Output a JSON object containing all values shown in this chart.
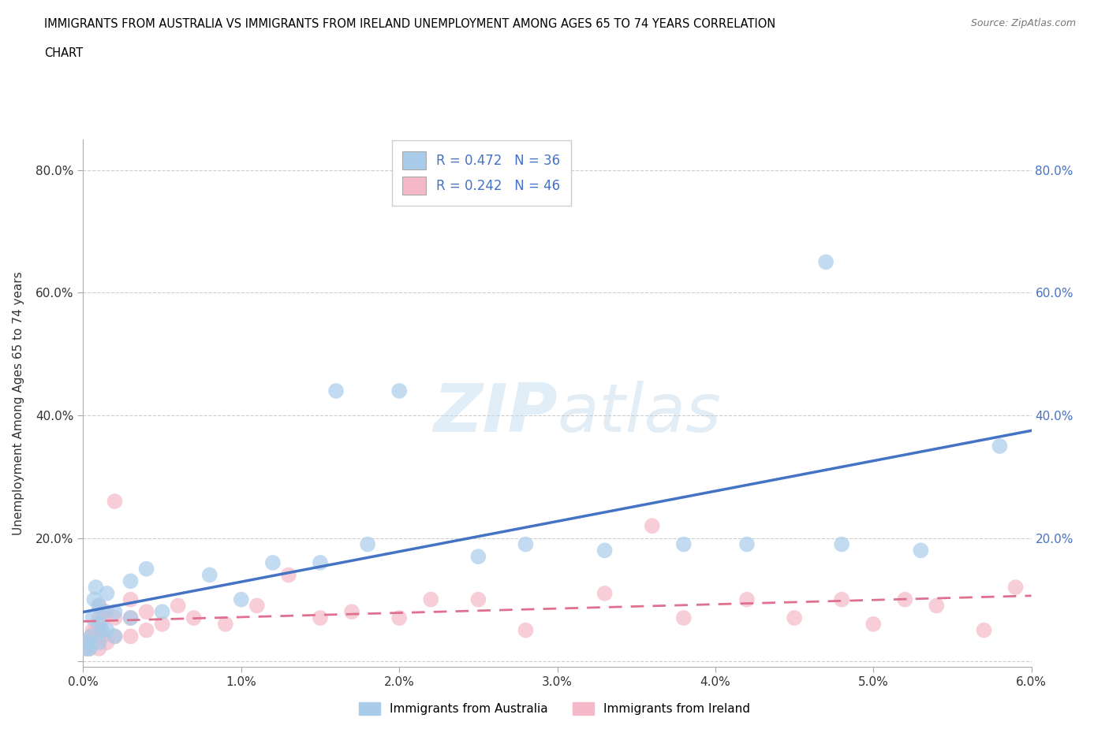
{
  "title_line1": "IMMIGRANTS FROM AUSTRALIA VS IMMIGRANTS FROM IRELAND UNEMPLOYMENT AMONG AGES 65 TO 74 YEARS CORRELATION",
  "title_line2": "CHART",
  "source": "Source: ZipAtlas.com",
  "ylabel_label": "Unemployment Among Ages 65 to 74 years",
  "legend_label_1": "Immigrants from Australia",
  "legend_label_2": "Immigrants from Ireland",
  "R1": "0.472",
  "N1": "36",
  "R2": "0.242",
  "N2": "46",
  "color1": "#a8ccea",
  "color2": "#f4b8c8",
  "line_color1": "#4472c4",
  "line_color2": "#e07090",
  "xlim": [
    0.0,
    0.06
  ],
  "ylim": [
    -0.01,
    0.85
  ],
  "xticks": [
    0.0,
    0.01,
    0.02,
    0.03,
    0.04,
    0.05,
    0.06
  ],
  "yticks": [
    0.0,
    0.2,
    0.4,
    0.6,
    0.8
  ],
  "xticklabels": [
    "0.0%",
    "1.0%",
    "2.0%",
    "3.0%",
    "4.0%",
    "5.0%",
    "6.0%"
  ],
  "yticklabels_left": [
    "",
    "20.0%",
    "40.0%",
    "60.0%",
    "80.0%"
  ],
  "yticklabels_right": [
    "",
    "20.0%",
    "40.0%",
    "60.0%",
    "80.0%"
  ],
  "aus_x": [
    0.0002,
    0.0003,
    0.0004,
    0.0005,
    0.0006,
    0.0007,
    0.0008,
    0.001,
    0.001,
    0.001,
    0.0012,
    0.0013,
    0.0015,
    0.0015,
    0.002,
    0.002,
    0.003,
    0.003,
    0.004,
    0.005,
    0.008,
    0.01,
    0.012,
    0.015,
    0.016,
    0.018,
    0.02,
    0.025,
    0.028,
    0.033,
    0.038,
    0.042,
    0.047,
    0.048,
    0.053,
    0.058
  ],
  "aus_y": [
    0.02,
    0.03,
    0.02,
    0.04,
    0.07,
    0.1,
    0.12,
    0.03,
    0.06,
    0.09,
    0.05,
    0.08,
    0.05,
    0.11,
    0.04,
    0.08,
    0.07,
    0.13,
    0.15,
    0.08,
    0.14,
    0.1,
    0.16,
    0.16,
    0.44,
    0.19,
    0.44,
    0.17,
    0.19,
    0.18,
    0.19,
    0.19,
    0.65,
    0.19,
    0.18,
    0.35
  ],
  "ire_x": [
    0.0002,
    0.0003,
    0.0004,
    0.0005,
    0.0006,
    0.0007,
    0.0008,
    0.001,
    0.001,
    0.001,
    0.001,
    0.0012,
    0.0013,
    0.0015,
    0.0015,
    0.002,
    0.002,
    0.002,
    0.003,
    0.003,
    0.003,
    0.004,
    0.004,
    0.005,
    0.006,
    0.007,
    0.009,
    0.011,
    0.013,
    0.015,
    0.017,
    0.02,
    0.022,
    0.025,
    0.028,
    0.033,
    0.036,
    0.038,
    0.042,
    0.045,
    0.048,
    0.05,
    0.052,
    0.054,
    0.057,
    0.059
  ],
  "ire_y": [
    0.02,
    0.03,
    0.02,
    0.04,
    0.05,
    0.03,
    0.05,
    0.02,
    0.05,
    0.07,
    0.09,
    0.04,
    0.07,
    0.03,
    0.08,
    0.04,
    0.07,
    0.26,
    0.04,
    0.07,
    0.1,
    0.05,
    0.08,
    0.06,
    0.09,
    0.07,
    0.06,
    0.09,
    0.14,
    0.07,
    0.08,
    0.07,
    0.1,
    0.1,
    0.05,
    0.11,
    0.22,
    0.07,
    0.1,
    0.07,
    0.1,
    0.06,
    0.1,
    0.09,
    0.05,
    0.12
  ]
}
